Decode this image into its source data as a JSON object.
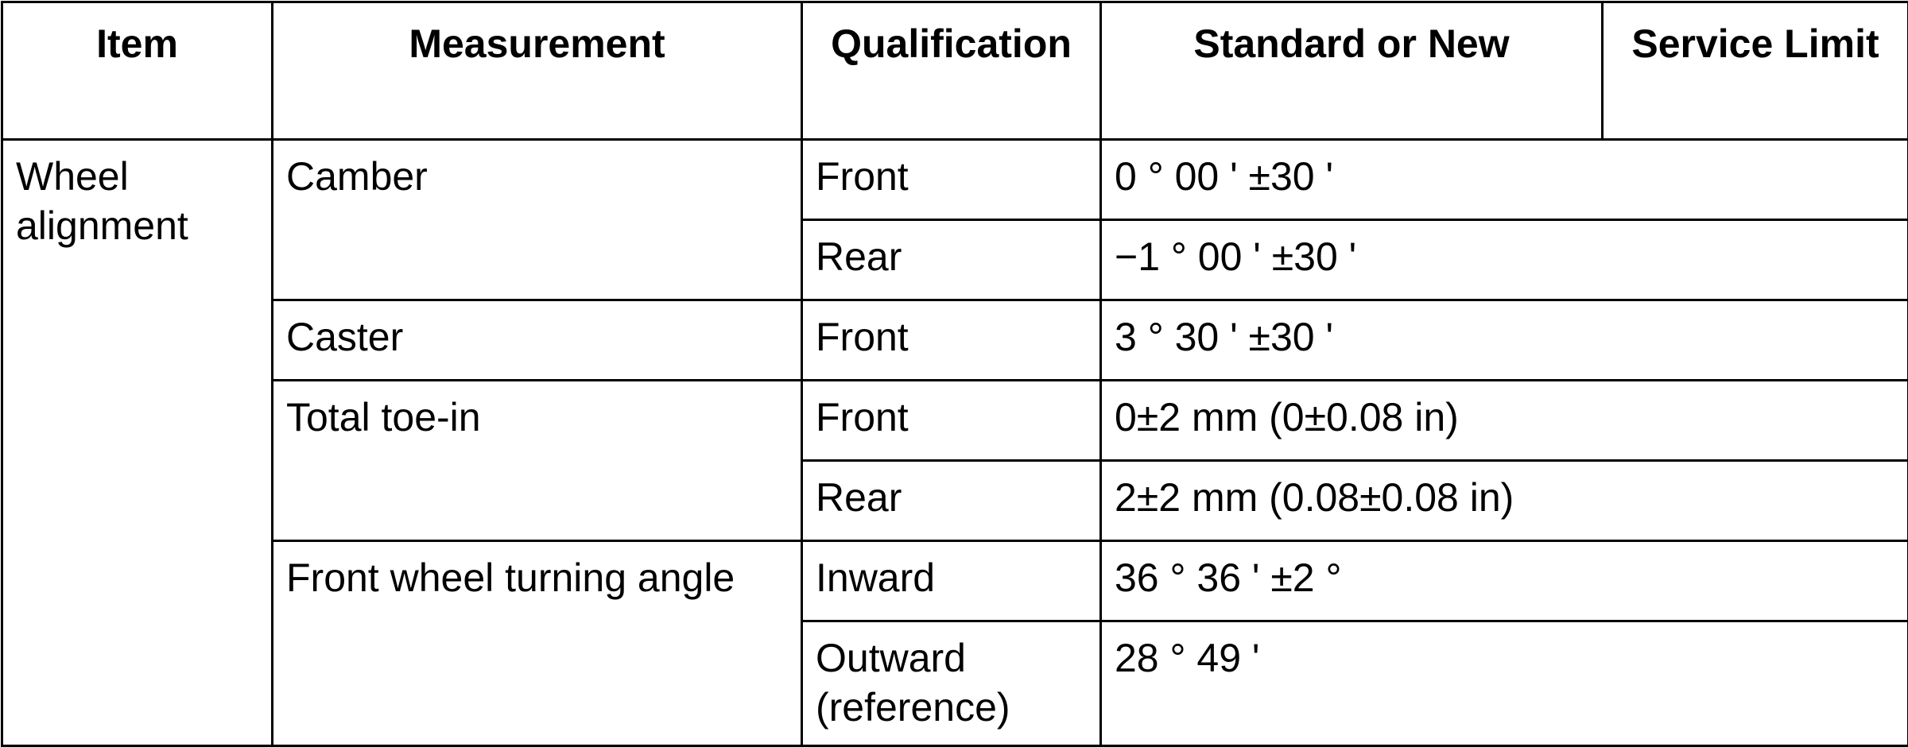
{
  "headers": {
    "item": "Item",
    "measurement": "Measurement",
    "qualification": "Qualification",
    "standard": "Standard or New",
    "service_limit": "Service Limit"
  },
  "rows": {
    "item": "Wheel alignment",
    "camber": {
      "label": "Camber",
      "front_q": "Front",
      "front_v": "0 ° 00 ' ±30 '",
      "rear_q": "Rear",
      "rear_v": "−1 ° 00 ' ±30 '"
    },
    "caster": {
      "label": "Caster",
      "front_q": "Front",
      "front_v": "3 ° 30 ' ±30 '"
    },
    "toe": {
      "label": "Total toe-in",
      "front_q": "Front",
      "front_v": "0±2 mm (0±0.08 in)",
      "rear_q": "Rear",
      "rear_v": "2±2 mm (0.08±0.08 in)"
    },
    "turning": {
      "label": "Front wheel turning angle",
      "in_q": "Inward",
      "in_v": "36 ° 36 ' ±2 °",
      "out_q": "Outward (reference)",
      "out_v": "28 ° 49 '"
    }
  }
}
